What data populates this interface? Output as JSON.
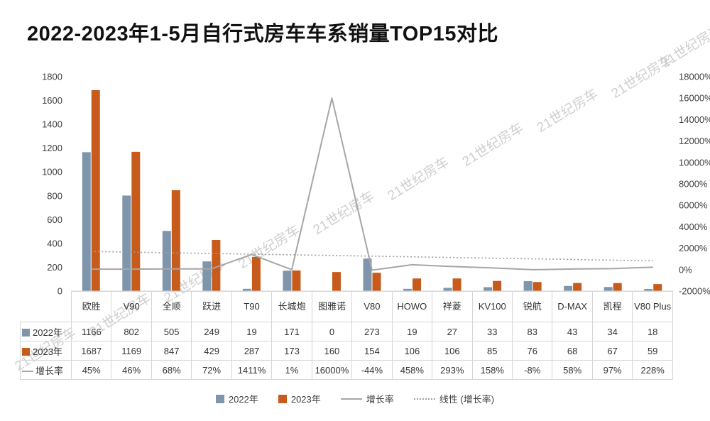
{
  "title": "2022-2023年1-5月自行式房车车系销量TOP15对比",
  "watermark_text": "21世纪房车",
  "colors": {
    "bar2022": "#7F95AC",
    "bar2023": "#C75B1B",
    "growth_line": "#A6A6A6",
    "trend_line": "#9E9E9E",
    "axis_text": "#404040",
    "table_border": "#D6D6D6"
  },
  "chart_data": {
    "type": "bar",
    "title": "2022-2023年1-5月自行式房车车系销量TOP15对比",
    "categories": [
      "欧胜",
      "V90",
      "全顺",
      "跃进",
      "T90",
      "长城炮",
      "图雅诺",
      "V80",
      "HOWO",
      "祥菱",
      "KV100",
      "锐航",
      "D-MAX",
      "凯程",
      "V80 Plus"
    ],
    "series": [
      {
        "name": "2022年",
        "type": "bar",
        "axis": "left",
        "values": [
          1166,
          802,
          505,
          249,
          19,
          171,
          0,
          273,
          19,
          27,
          33,
          83,
          43,
          34,
          18
        ]
      },
      {
        "name": "2023年",
        "type": "bar",
        "axis": "left",
        "values": [
          1687,
          1169,
          847,
          429,
          287,
          173,
          160,
          154,
          106,
          106,
          85,
          76,
          68,
          67,
          59
        ]
      },
      {
        "name": "增长率",
        "type": "line",
        "axis": "right",
        "values_percent": [
          45,
          46,
          68,
          72,
          1411,
          1,
          16000,
          -44,
          458,
          293,
          158,
          -8,
          58,
          97,
          228
        ],
        "labels": [
          "45%",
          "46%",
          "68%",
          "72%",
          "1411%",
          "1%",
          "16000%",
          "-44%",
          "458%",
          "293%",
          "158%",
          "-8%",
          "58%",
          "97%",
          "228%"
        ]
      },
      {
        "name": "线性 (增长率)",
        "type": "linear-trend-dotted",
        "axis": "right",
        "of": "增长率"
      }
    ],
    "left_axis": {
      "min": 0,
      "max": 1800,
      "ticks": [
        "1800",
        "1600",
        "1400",
        "1200",
        "1000",
        "800",
        "600",
        "400",
        "200",
        "0"
      ]
    },
    "right_axis": {
      "min": -2000,
      "max": 18000,
      "ticks": [
        "18000%",
        "16000%",
        "14000%",
        "12000%",
        "10000%",
        "8000%",
        "6000%",
        "4000%",
        "2000%",
        "0%",
        "-2000%"
      ]
    },
    "legend": [
      {
        "label": "2022年",
        "marker": "square-blue"
      },
      {
        "label": "2023年",
        "marker": "square-orange"
      },
      {
        "label": "增长率",
        "marker": "line"
      },
      {
        "label": "线性 (增长率)",
        "marker": "dotted-line"
      }
    ],
    "grid": "off",
    "legend_position": "bottom-center"
  }
}
